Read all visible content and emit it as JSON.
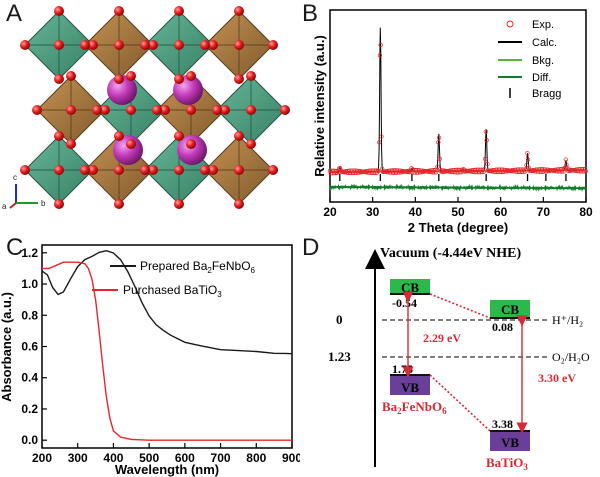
{
  "figure": {
    "panel_labels": [
      "A",
      "B",
      "C",
      "D"
    ]
  },
  "panel_a": {
    "axis_labels": [
      "c",
      "a",
      "b"
    ]
  },
  "chart_data": [
    {
      "panel": "B",
      "type": "line",
      "xlabel": "2 Theta (degree)",
      "ylabel": "Relative intensity (a.u.)",
      "xlim": [
        20,
        80
      ],
      "xticks": [
        "20",
        "30",
        "40",
        "50",
        "60",
        "70",
        "80"
      ],
      "legend": [
        "Exp.",
        "Calc.",
        "Bkg.",
        "Diff.",
        "Bragg"
      ],
      "legend_colors": [
        "#e8262a",
        "#000000",
        "#5ab33a",
        "#0d7d2a",
        "#000000"
      ],
      "peaks": [
        {
          "x": 22.3,
          "h": 0.03
        },
        {
          "x": 31.8,
          "h": 1.0
        },
        {
          "x": 39.2,
          "h": 0.02
        },
        {
          "x": 45.5,
          "h": 0.26
        },
        {
          "x": 51.2,
          "h": 0.01
        },
        {
          "x": 56.6,
          "h": 0.29
        },
        {
          "x": 66.3,
          "h": 0.12
        },
        {
          "x": 75.3,
          "h": 0.07
        }
      ],
      "bragg": [
        22.3,
        31.8,
        39.2,
        45.5,
        56.6,
        66.3,
        70.6,
        75.3
      ]
    },
    {
      "panel": "C",
      "type": "line",
      "xlabel": "Wavelength (nm)",
      "ylabel": "Absorbance (a.u.)",
      "xlim": [
        200,
        900
      ],
      "ylim": [
        -0.05,
        1.25
      ],
      "xticks": [
        "200",
        "300",
        "400",
        "500",
        "600",
        "700",
        "800",
        "900"
      ],
      "yticks": [
        "0.0",
        "0.2",
        "0.4",
        "0.6",
        "0.8",
        "1.0",
        "1.2"
      ],
      "series": [
        {
          "name": "Prepared Ba2FeNbO6",
          "label_main": "Prepared Ba",
          "label_sub1": "2",
          "label_mid": "FeNbO",
          "label_sub2": "6",
          "color": "#1a1a1a",
          "x": [
            200,
            215,
            230,
            245,
            260,
            280,
            300,
            320,
            340,
            360,
            380,
            400,
            420,
            440,
            460,
            480,
            500,
            520,
            540,
            560,
            600,
            650,
            700,
            750,
            800,
            850,
            880,
            900
          ],
          "y": [
            1.08,
            1.06,
            0.98,
            0.93,
            0.95,
            1.03,
            1.11,
            1.16,
            1.18,
            1.2,
            1.21,
            1.2,
            1.16,
            1.08,
            0.98,
            0.88,
            0.8,
            0.74,
            0.7,
            0.67,
            0.63,
            0.6,
            0.58,
            0.575,
            0.565,
            0.56,
            0.555,
            0.55
          ]
        },
        {
          "name": "Purchased BaTiO3",
          "label_main": "Purchased BaTiO",
          "label_sub1": "3",
          "color": "#e8262a",
          "x": [
            200,
            220,
            240,
            260,
            280,
            300,
            320,
            330,
            340,
            350,
            360,
            370,
            380,
            390,
            400,
            420,
            450,
            500,
            600,
            700,
            800,
            900
          ],
          "y": [
            1.1,
            1.1,
            1.12,
            1.14,
            1.14,
            1.14,
            1.13,
            1.1,
            1.03,
            0.9,
            0.7,
            0.48,
            0.28,
            0.14,
            0.06,
            0.02,
            0.005,
            0.0,
            0.0,
            0.0,
            0.0,
            0.0
          ]
        }
      ]
    }
  ],
  "panel_d": {
    "title": "Vacuum (-4.44eV NHE)",
    "level_zero": "0",
    "level_123": "1.23",
    "h_couple": "H⁺/H₂",
    "o_couple": "O₂/H₂O",
    "cb_label": "CB",
    "vb_label": "VB",
    "bfno_cb": "-0.54",
    "bfno_vb": "1.75",
    "bto_cb": "0.08",
    "bto_vb": "3.38",
    "gap_bfno": "2.29 eV",
    "gap_bto": "3.30 eV",
    "bfno_name": "Ba",
    "bfno_sub1": "2",
    "bfno_mid": "FeNbO",
    "bfno_sub2": "6",
    "bto_name": "BaTiO",
    "bto_sub": "3",
    "colors": {
      "cb": "#2db84b",
      "vb": "#6a3f9a",
      "arrow": "#d62a35",
      "mat": "#d62a35"
    }
  }
}
